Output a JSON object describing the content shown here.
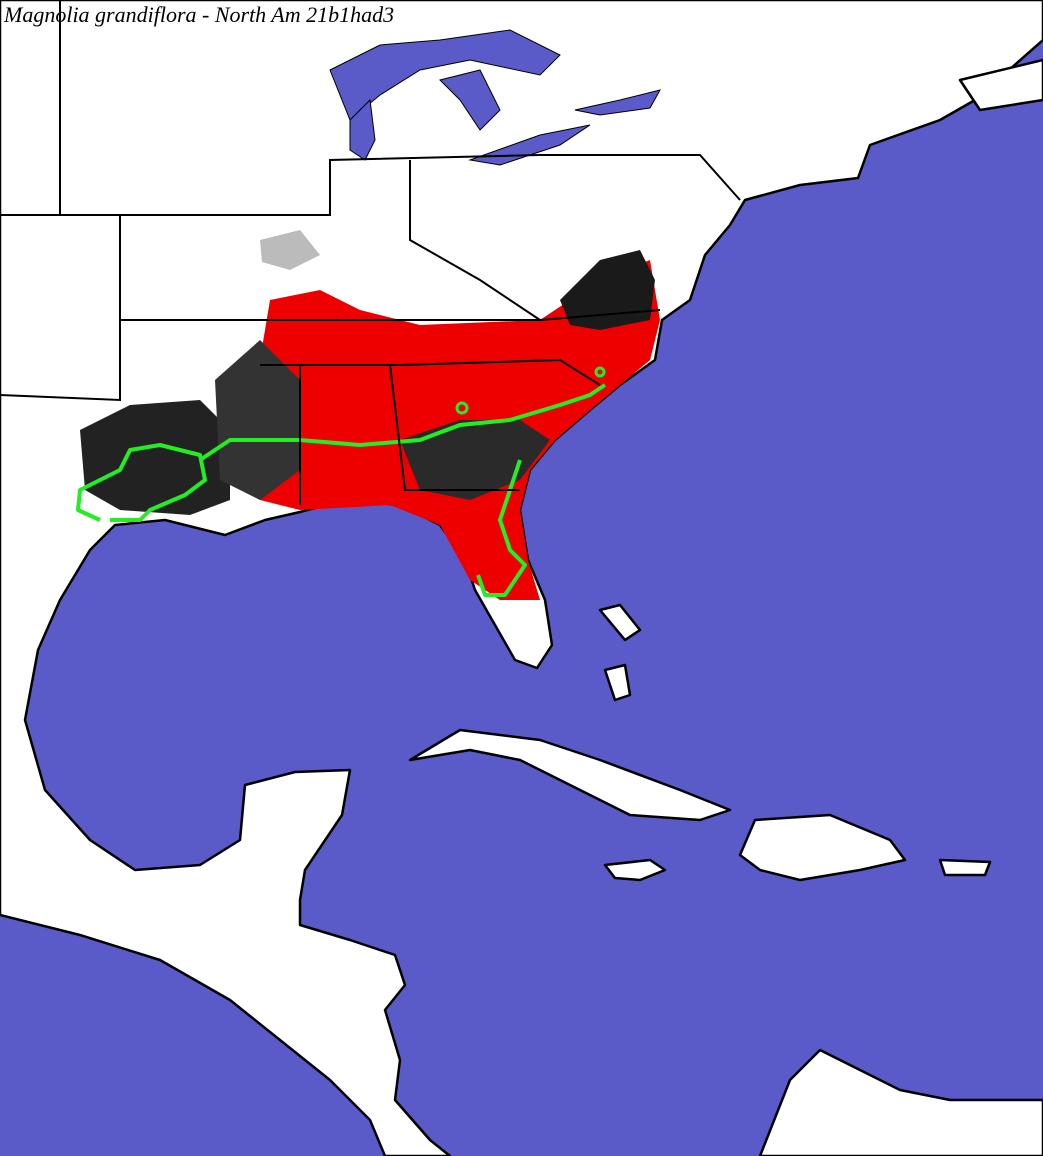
{
  "title": "Magnolia grandiflora - North Am 21b1had3"
}
